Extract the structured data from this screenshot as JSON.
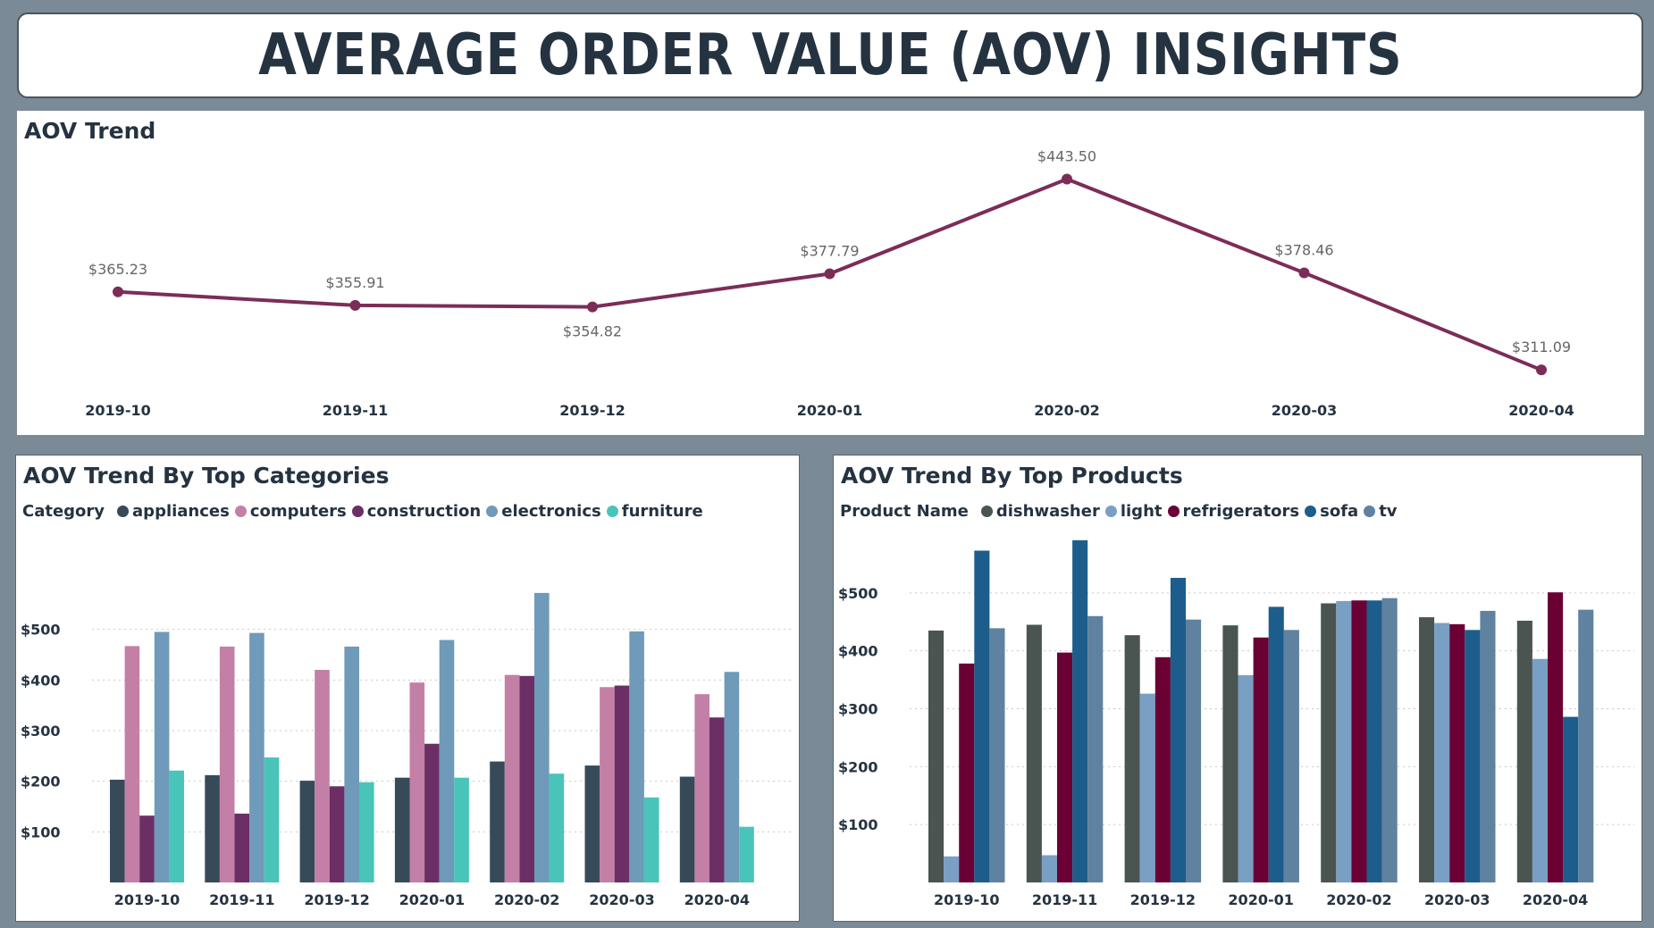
{
  "page_title": "AVERAGE ORDER VALUE (AOV) INSIGHTS",
  "chart_data": [
    {
      "type": "line",
      "title": "AOV Trend",
      "categories": [
        "2019-10",
        "2019-11",
        "2019-12",
        "2020-01",
        "2020-02",
        "2020-03",
        "2020-04"
      ],
      "values": [
        365.23,
        355.91,
        354.82,
        377.79,
        443.5,
        378.46,
        311.09
      ],
      "data_labels": [
        "$365.23",
        "$355.91",
        "$354.82",
        "$377.79",
        "$443.50",
        "$378.46",
        "$311.09"
      ],
      "color": "#7b2d58",
      "ylim": [
        305,
        450
      ],
      "grid": false
    },
    {
      "type": "bar",
      "title": "AOV Trend By Top Categories",
      "legend_title": "Category",
      "legend_position": "top-left",
      "categories": [
        "2019-10",
        "2019-11",
        "2019-12",
        "2020-01",
        "2020-02",
        "2020-03",
        "2020-04"
      ],
      "series": [
        {
          "name": "appliances",
          "color": "#374a5a",
          "values": [
            203,
            212,
            201,
            207,
            239,
            231,
            209
          ]
        },
        {
          "name": "computers",
          "color": "#c47fa6",
          "values": [
            467,
            466,
            420,
            395,
            410,
            386,
            372
          ]
        },
        {
          "name": "construction",
          "color": "#6b2f65",
          "values": [
            132,
            136,
            190,
            274,
            408,
            389,
            326
          ]
        },
        {
          "name": "electronics",
          "color": "#6f9ab9",
          "values": [
            495,
            493,
            466,
            479,
            572,
            496,
            416
          ]
        },
        {
          "name": "furniture",
          "color": "#49c4b9",
          "values": [
            221,
            247,
            198,
            207,
            215,
            168,
            110
          ]
        }
      ],
      "yticks": [
        "$100",
        "$200",
        "$300",
        "$400",
        "$500"
      ],
      "ytick_values": [
        100,
        200,
        300,
        400,
        500
      ],
      "ylim": [
        0,
        600
      ],
      "grid": true
    },
    {
      "type": "bar",
      "title": "AOV Trend By Top Products",
      "legend_title": "Product Name",
      "legend_position": "top-left",
      "categories": [
        "2019-10",
        "2019-11",
        "2019-12",
        "2020-01",
        "2020-02",
        "2020-03",
        "2020-04"
      ],
      "series": [
        {
          "name": "dishwasher",
          "color": "#4a5451",
          "values": [
            435,
            445,
            427,
            444,
            482,
            458,
            452
          ]
        },
        {
          "name": "light",
          "color": "#7a9fc4",
          "values": [
            45,
            47,
            326,
            358,
            486,
            448,
            386
          ]
        },
        {
          "name": "refrigerators",
          "color": "#6a0033",
          "values": [
            378,
            397,
            389,
            423,
            487,
            446,
            501
          ]
        },
        {
          "name": "sofa",
          "color": "#1d5d8c",
          "values": [
            573,
            591,
            526,
            476,
            487,
            436,
            286
          ]
        },
        {
          "name": "tv",
          "color": "#5f82a0",
          "values": [
            439,
            460,
            454,
            436,
            491,
            469,
            471
          ]
        }
      ],
      "yticks": [
        "$100",
        "$200",
        "$300",
        "$400",
        "$500"
      ],
      "ytick_values": [
        100,
        200,
        300,
        400,
        500
      ],
      "ylim": [
        0,
        600
      ],
      "grid": true
    }
  ]
}
